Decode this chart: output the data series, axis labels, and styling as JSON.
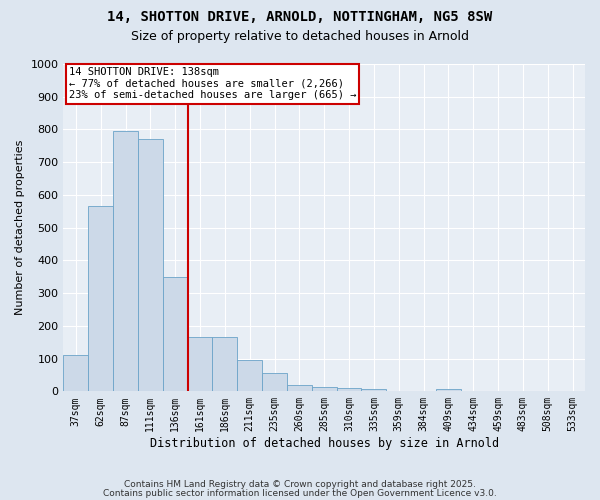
{
  "title_line1": "14, SHOTTON DRIVE, ARNOLD, NOTTINGHAM, NG5 8SW",
  "title_line2": "Size of property relative to detached houses in Arnold",
  "xlabel": "Distribution of detached houses by size in Arnold",
  "ylabel": "Number of detached properties",
  "categories": [
    "37sqm",
    "62sqm",
    "87sqm",
    "111sqm",
    "136sqm",
    "161sqm",
    "186sqm",
    "211sqm",
    "235sqm",
    "260sqm",
    "285sqm",
    "310sqm",
    "335sqm",
    "359sqm",
    "384sqm",
    "409sqm",
    "434sqm",
    "459sqm",
    "483sqm",
    "508sqm",
    "533sqm"
  ],
  "values": [
    110,
    565,
    795,
    770,
    350,
    165,
    165,
    97,
    55,
    18,
    12,
    10,
    8,
    2,
    0,
    8,
    2,
    0,
    0,
    2,
    2
  ],
  "bar_color": "#ccd9e8",
  "bar_edge_color": "#6ba3c8",
  "vline_x_pos": 4.5,
  "vline_color": "#cc0000",
  "annotation_title": "14 SHOTTON DRIVE: 138sqm",
  "annotation_line1": "← 77% of detached houses are smaller (2,266)",
  "annotation_line2": "23% of semi-detached houses are larger (665) →",
  "annotation_box_edgecolor": "#cc0000",
  "ylim": [
    0,
    1000
  ],
  "yticks": [
    0,
    100,
    200,
    300,
    400,
    500,
    600,
    700,
    800,
    900,
    1000
  ],
  "bg_color": "#dde6f0",
  "plot_bg_color": "#e8eef5",
  "grid_color": "#ffffff",
  "footer_line1": "Contains HM Land Registry data © Crown copyright and database right 2025.",
  "footer_line2": "Contains public sector information licensed under the Open Government Licence v3.0."
}
